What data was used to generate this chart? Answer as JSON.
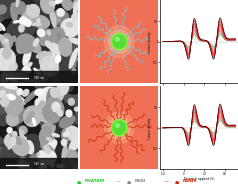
{
  "background_color": "#ffffff",
  "salmon_bg": "#f07055",
  "legend_labels": [
    "PHATAM",
    "PANI",
    "PANIS"
  ],
  "legend_colors": [
    "#22cc22",
    "#888888",
    "#dd2200"
  ],
  "star_top_color": "#88bbcc",
  "star_bottom_color": "#cc3311",
  "center_color": "#55dd33",
  "center_glow": "#ccffaa",
  "sem_bg": "#555555",
  "sem_info_bar": "#111111",
  "cv_xlabel": "Potential applied (V)",
  "cv_ylabel": "Current density",
  "cv_n_curves": 12,
  "cv_colors_top": [
    "#003300",
    "#004400",
    "#005500",
    "#116600",
    "#227700",
    "#338800",
    "#bb2200",
    "#cc3300",
    "#dd4400",
    "#ee5500",
    "#ff6600",
    "#000000"
  ],
  "cv_colors_bottom": [
    "#003300",
    "#004400",
    "#005500",
    "#116600",
    "#227700",
    "#338800",
    "#bb2200",
    "#cc3300",
    "#dd4400",
    "#ee5500",
    "#ff6600",
    "#000000"
  ]
}
